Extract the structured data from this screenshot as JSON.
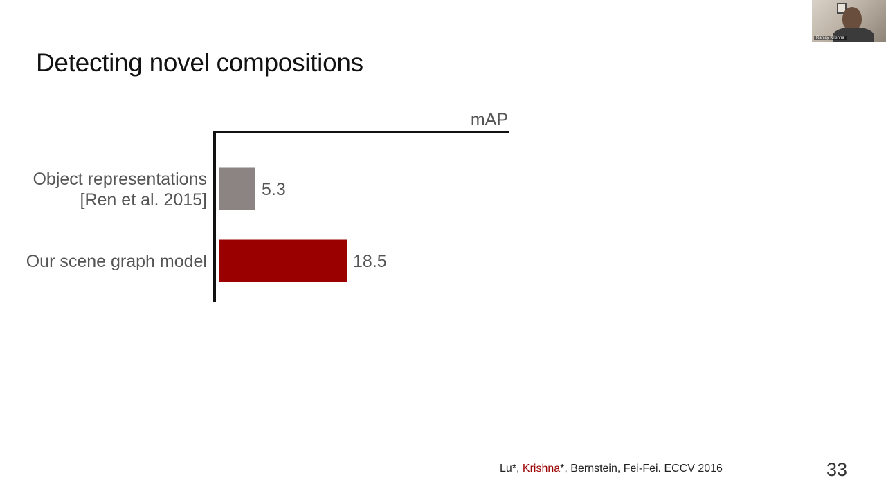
{
  "slide": {
    "title": "Detecting novel compositions",
    "page_number": "33"
  },
  "citation": {
    "part1": "Lu*, ",
    "highlight": "Krishna",
    "part2": "*, Bernstein, Fei-Fei. ECCV 2016"
  },
  "webcam": {
    "nametag": "Ranjay Krishna"
  },
  "chart_data": {
    "type": "bar",
    "orientation": "horizontal",
    "axis_title": "mAP",
    "categories": [
      [
        "Object representations",
        "[Ren et al. 2015]"
      ],
      [
        "Our scene graph model"
      ]
    ],
    "values": [
      5.3,
      18.5
    ],
    "value_labels": [
      "5.3",
      "18.5"
    ],
    "colors": [
      "#8c8383",
      "#9b0000"
    ],
    "xlim": [
      0,
      42
    ],
    "grid": false
  }
}
